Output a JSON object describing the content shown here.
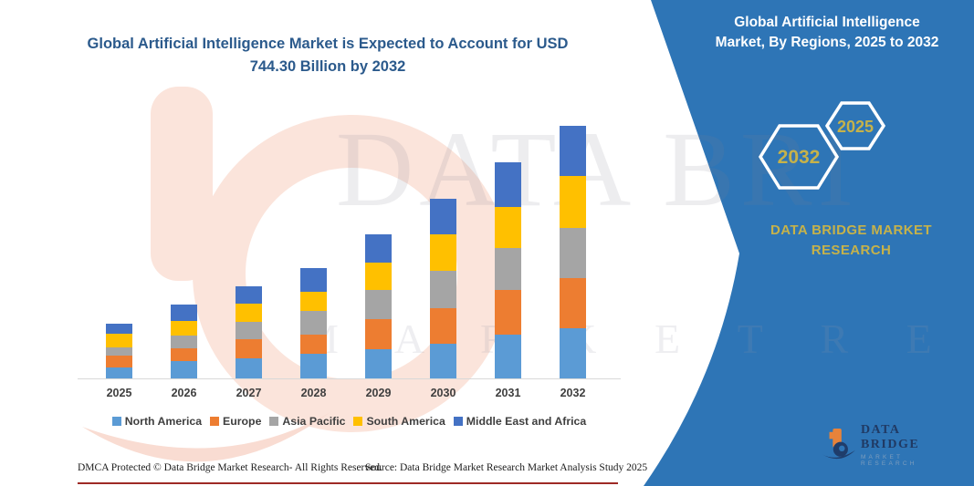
{
  "title": {
    "line1": "Global Artificial Intelligence Market is Expected to Account for USD",
    "line2": "744.30 Billion by 2032"
  },
  "panel": {
    "heading_line1": "Global Artificial Intelligence",
    "heading_line2": "Market, By Regions, 2025 to 2032",
    "hexagons": [
      {
        "label": "2032"
      },
      {
        "label": "2025"
      }
    ],
    "brand_line1": "DATA BRIDGE MARKET",
    "brand_line2": "RESEARCH",
    "logo": {
      "name": "DATA BRIDGE",
      "tagline": "MARKET RESEARCH"
    }
  },
  "footer": {
    "dmca": "DMCA Protected © Data Bridge Market Research-  All Rights Reserved.",
    "source": "Source: Data Bridge Market Research  Market Analysis Study 2025"
  },
  "watermark": {
    "line1": "DATA BRI",
    "line2": "M A R K E T   R E S E A R C H"
  },
  "colors": {
    "panel_blue": "#2E75B6",
    "gold": "#C6B24A",
    "title_text": "#2B5A8C",
    "axis_text": "#3F3F3F",
    "footer_rule": "#9E2A25",
    "watermark_pink": "#FBE4DB"
  },
  "chart_data": {
    "type": "bar",
    "stacked": true,
    "title": "Global Artificial Intelligence Market is Expected to Account for USD 744.30 Billion by 2032",
    "unit": "USD Billion",
    "categories": [
      "2025",
      "2026",
      "2027",
      "2028",
      "2029",
      "2030",
      "2031",
      "2032"
    ],
    "series": [
      {
        "name": "North America",
        "color": "#5B9BD5",
        "values": [
          32,
          51,
          59,
          74,
          85,
          103,
          130,
          148
        ]
      },
      {
        "name": "Europe",
        "color": "#ED7D31",
        "values": [
          35,
          38,
          56,
          56,
          90,
          103,
          130,
          148
        ]
      },
      {
        "name": "Asia Pacific",
        "color": "#A5A5A5",
        "values": [
          24,
          38,
          51,
          70,
          85,
          112,
          125,
          148
        ]
      },
      {
        "name": "South America",
        "color": "#FFC000",
        "values": [
          40,
          43,
          54,
          56,
          81,
          107,
          121,
          152
        ]
      },
      {
        "name": "Middle East and Africa",
        "color": "#4472C4",
        "values": [
          30,
          47,
          51,
          70,
          85,
          105,
          130,
          148.3
        ]
      }
    ],
    "totals": [
      161,
      217,
      271,
      326,
      426,
      530,
      636,
      744.3
    ],
    "highlight_total_2032": 744.3,
    "xlabel": "",
    "ylabel": "",
    "ylim": [
      0,
      790
    ],
    "grid": false,
    "legend_position": "bottom"
  }
}
